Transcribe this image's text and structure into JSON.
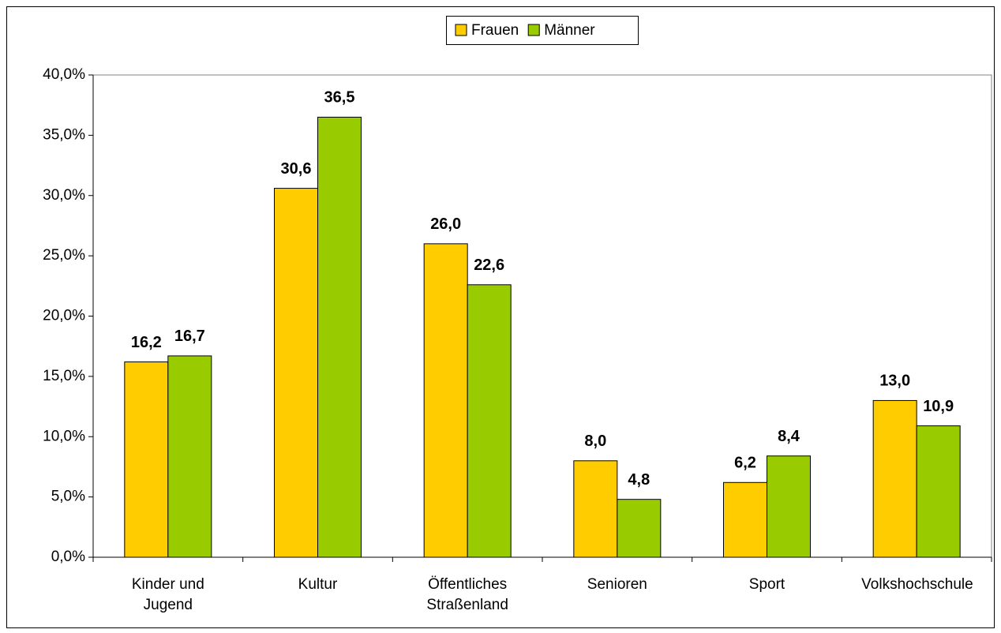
{
  "chart_data": {
    "type": "bar",
    "categories": [
      "Kinder und Jugend",
      "Kultur",
      "Öffentliches Straßenland",
      "Senioren",
      "Sport",
      "Volkshochschule"
    ],
    "series": [
      {
        "name": "Frauen",
        "color": "#ffcc00",
        "values": [
          16.2,
          30.6,
          26.0,
          8.0,
          6.2,
          13.0
        ],
        "value_labels": [
          "16,2",
          "30,6",
          "26,0",
          "8,0",
          "6,2",
          "13,0"
        ]
      },
      {
        "name": "Männer",
        "color": "#99cc00",
        "values": [
          16.7,
          36.5,
          22.6,
          4.8,
          8.4,
          10.9
        ],
        "value_labels": [
          "16,7",
          "36,5",
          "22,6",
          "4,8",
          "8,4",
          "10,9"
        ]
      }
    ],
    "ylim": [
      0,
      40
    ],
    "yticks": [
      {
        "value": 0,
        "label": "0,0%"
      },
      {
        "value": 5,
        "label": "5,0%"
      },
      {
        "value": 10,
        "label": "10,0%"
      },
      {
        "value": 15,
        "label": "15,0%"
      },
      {
        "value": 20,
        "label": "20,0%"
      },
      {
        "value": 25,
        "label": "25,0%"
      },
      {
        "value": 30,
        "label": "30,0%"
      },
      {
        "value": 35,
        "label": "35,0%"
      },
      {
        "value": 40,
        "label": "40,0%"
      }
    ],
    "legend": "top"
  }
}
